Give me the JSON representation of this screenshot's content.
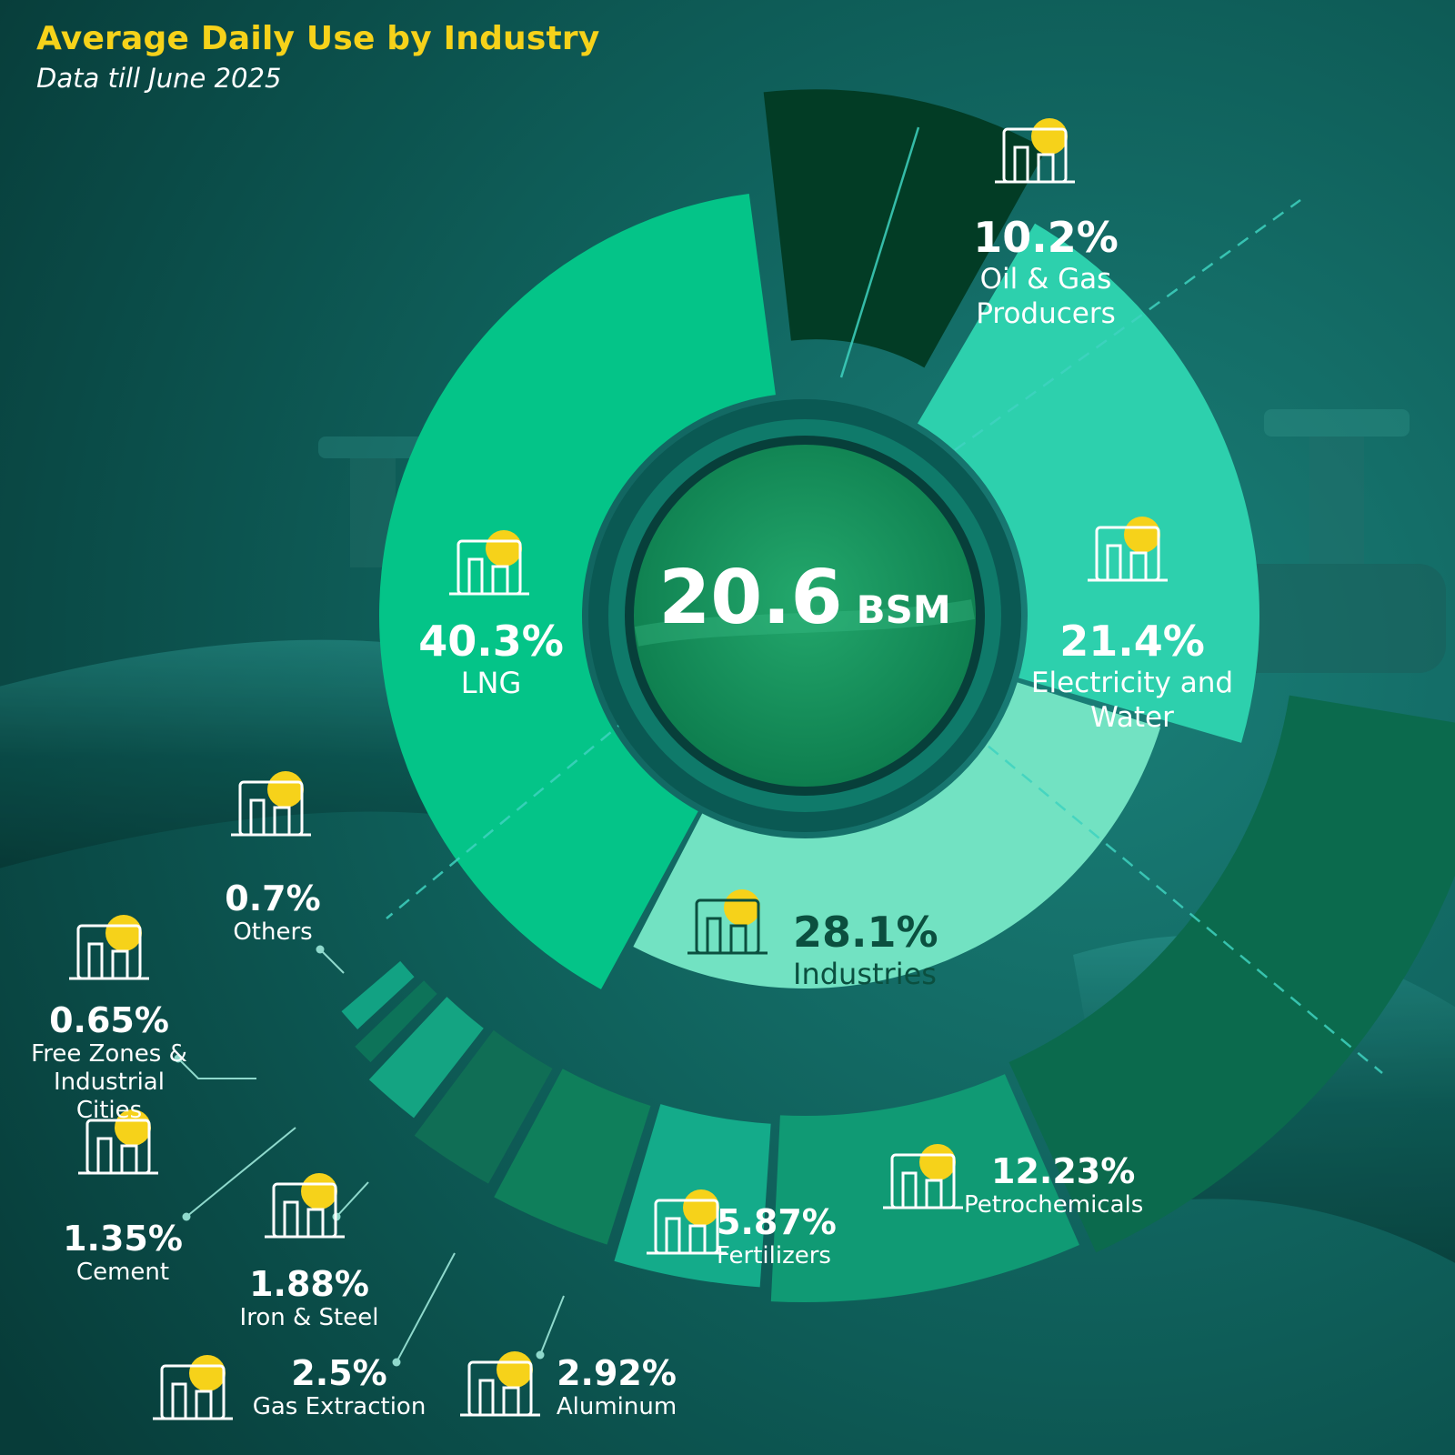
{
  "header": {
    "title": "Average Daily Use by Industry",
    "subtitle": "Data till June 2025"
  },
  "center": {
    "value": "20.6",
    "unit": "BSM"
  },
  "colors": {
    "lng": "#04c488",
    "oil_gas": "#023c25",
    "electricity": "#2dd0ad",
    "industries": "#72e2c2",
    "petrochemicals": "#0b6a4d",
    "fertilizers": "#109a74",
    "aluminum": "#14ab8a",
    "gas_extraction": "#0f7f5b",
    "iron_steel": "#106e55",
    "cement": "#14a482",
    "free_zones": "#0d7359",
    "others": "#12a283",
    "accent": "#f6d21a"
  },
  "icons": {
    "lng": "lng-tank-icon",
    "oil_gas": "oil-pump-icon",
    "electricity": "power-plant-icon",
    "industries": "factory-icon",
    "petrochemicals": "petrochemical-plant-icon",
    "fertilizers": "fertilizer-sack-icon",
    "aluminum": "aluminum-ingots-icon",
    "gas_extraction": "gas-extraction-plant-icon",
    "iron_steel": "steel-crucible-icon",
    "cement": "cement-plant-icon",
    "free_zones": "free-zone-briefcase-icon",
    "others": "factory-gear-icon"
  },
  "chart_data": [
    {
      "type": "pie",
      "categories": [
        "LNG",
        "Oil & Gas Producers",
        "Electricity and Water",
        "Industries"
      ],
      "values": [
        40.3,
        10.2,
        21.4,
        28.1
      ],
      "labels": [
        {
          "pct": "40.3%",
          "name": "LNG"
        },
        {
          "pct": "10.2%",
          "name": "Oil & Gas Producers"
        },
        {
          "pct": "21.4%",
          "name": "Electricity and Water"
        },
        {
          "pct": "28.1%",
          "name": "Industries"
        }
      ]
    },
    {
      "type": "pie",
      "categories": [
        "Petrochemicals",
        "Fertilizers",
        "Aluminum",
        "Gas Extraction",
        "Iron & Steel",
        "Cement",
        "Free Zones & Industrial Cities",
        "Others"
      ],
      "values": [
        12.23,
        5.87,
        2.92,
        2.5,
        1.88,
        1.35,
        0.65,
        0.7
      ],
      "labels": [
        {
          "pct": "12.23%",
          "name": "Petrochemicals"
        },
        {
          "pct": "5.87%",
          "name": "Fertilizers"
        },
        {
          "pct": "2.92%",
          "name": "Aluminum"
        },
        {
          "pct": "2.5%",
          "name": "Gas Extraction"
        },
        {
          "pct": "1.88%",
          "name": "Iron & Steel"
        },
        {
          "pct": "1.35%",
          "name": "Cement"
        },
        {
          "pct": "0.65%",
          "name": "Free Zones & Industrial Cities"
        },
        {
          "pct": "0.7%",
          "name": "Others"
        }
      ]
    }
  ]
}
